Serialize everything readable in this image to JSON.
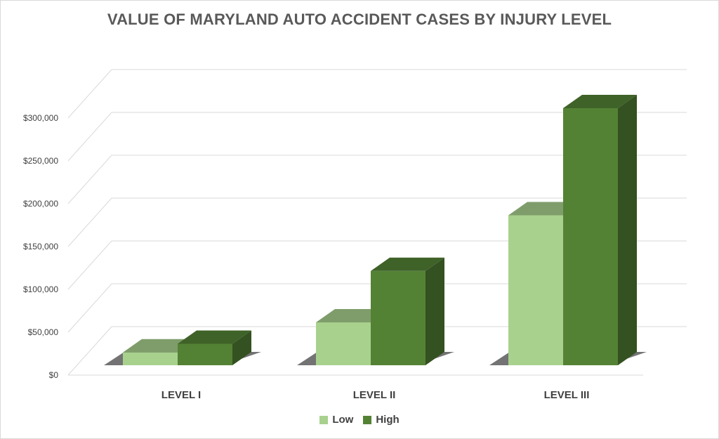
{
  "chart_data": {
    "type": "bar",
    "title": "VALUE OF MARYLAND AUTO ACCIDENT CASES BY INJURY LEVEL",
    "categories": [
      "LEVEL I",
      "LEVEL II",
      "LEVEL III"
    ],
    "series": [
      {
        "name": "Low",
        "values": [
          15000,
          50000,
          175000
        ],
        "color": "#a9d18e"
      },
      {
        "name": "High",
        "values": [
          25000,
          110000,
          300000
        ],
        "color": "#548235"
      }
    ],
    "yticks": [
      "$0",
      "$50,000",
      "$100,000",
      "$150,000",
      "$200,000",
      "$250,000",
      "$300,000"
    ],
    "ylim": [
      0,
      300000
    ],
    "grid": true,
    "legend_position": "bottom",
    "projection": "3d-column"
  }
}
